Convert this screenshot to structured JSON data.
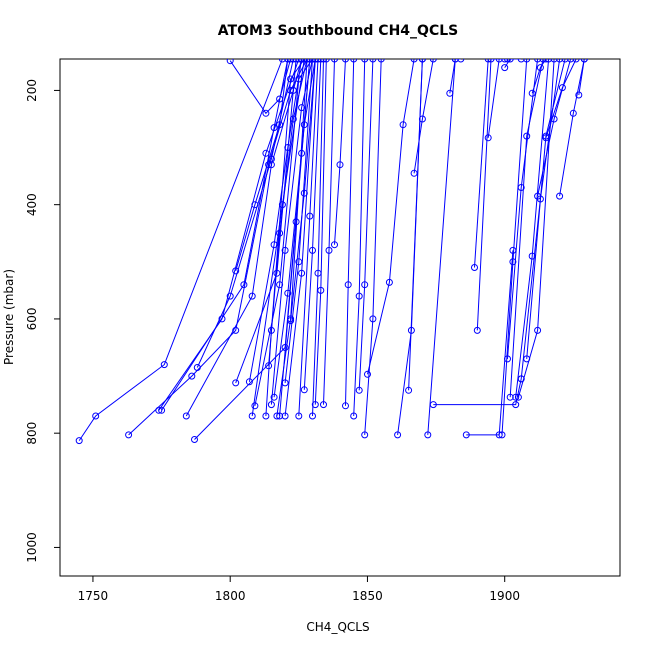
{
  "chart_data": {
    "type": "line",
    "title": "ATOM3 Southbound CH4_QCLS",
    "xlabel": "CH4_QCLS",
    "ylabel": "Pressure (mbar)",
    "xlim": [
      1738,
      1942
    ],
    "ylim": [
      1050,
      145
    ],
    "y_reversed": true,
    "x_ticks": [
      1750,
      1800,
      1850,
      1900
    ],
    "y_ticks": [
      200,
      400,
      600,
      800,
      1000
    ],
    "grid": false,
    "legend": "none",
    "color": "#0000ff",
    "markers": "open-circle",
    "series": [
      {
        "x": [
          1745,
          1751,
          1776,
          1819
        ],
        "y": [
          813,
          770,
          680,
          145
        ]
      },
      {
        "x": [
          1763,
          1786,
          1802,
          1814,
          1822,
          1828
        ],
        "y": [
          803,
          700,
          620,
          330,
          200,
          145
        ]
      },
      {
        "x": [
          1774,
          1797,
          1813,
          1825
        ],
        "y": [
          760,
          600,
          310,
          145
        ]
      },
      {
        "x": [
          1775,
          1805,
          1816,
          1821
        ],
        "y": [
          760,
          540,
          265,
          145
        ]
      },
      {
        "x": [
          1784,
          1808,
          1815,
          1823,
          1826
        ],
        "y": [
          770,
          560,
          330,
          200,
          145
        ]
      },
      {
        "x": [
          1787,
          1820,
          1826,
          1829
        ],
        "y": [
          811,
          650,
          310,
          145
        ]
      },
      {
        "x": [
          1788,
          1800,
          1815,
          1823
        ],
        "y": [
          685,
          560,
          320,
          145
        ]
      },
      {
        "x": [
          1800,
          1813,
          1818,
          1822
        ],
        "y": [
          148,
          240,
          215,
          145
        ]
      },
      {
        "x": [
          1802,
          1809,
          1818,
          1821
        ],
        "y": [
          516,
          400,
          260,
          145
        ]
      },
      {
        "x": [
          1802,
          1817,
          1824
        ],
        "y": [
          712,
          520,
          145
        ]
      },
      {
        "x": [
          1807,
          1816,
          1821,
          1826
        ],
        "y": [
          710,
          470,
          300,
          145
        ]
      },
      {
        "x": [
          1808,
          1819,
          1827
        ],
        "y": [
          770,
          400,
          145
        ]
      },
      {
        "x": [
          1809,
          1818,
          1825,
          1830
        ],
        "y": [
          752,
          540,
          180,
          145
        ]
      },
      {
        "x": [
          1813,
          1815,
          1822,
          1827
        ],
        "y": [
          770,
          620,
          180,
          145
        ]
      },
      {
        "x": [
          1814,
          1818,
          1823,
          1828
        ],
        "y": [
          682,
          450,
          250,
          145
        ]
      },
      {
        "x": [
          1815,
          1820,
          1826,
          1830
        ],
        "y": [
          750,
          480,
          230,
          145
        ]
      },
      {
        "x": [
          1816,
          1821,
          1827,
          1831
        ],
        "y": [
          737,
          555,
          260,
          145
        ]
      },
      {
        "x": [
          1817,
          1822,
          1828
        ],
        "y": [
          770,
          600,
          145
        ]
      },
      {
        "x": [
          1818,
          1824,
          1829
        ],
        "y": [
          770,
          430,
          145
        ]
      },
      {
        "x": [
          1820,
          1825,
          1830
        ],
        "y": [
          712,
          500,
          145
        ]
      },
      {
        "x": [
          1820,
          1826,
          1831
        ],
        "y": [
          770,
          520,
          145
        ]
      },
      {
        "x": [
          1822,
          1827,
          1831
        ],
        "y": [
          603,
          380,
          145
        ]
      },
      {
        "x": [
          1825,
          1829,
          1832
        ],
        "y": [
          770,
          420,
          145
        ]
      },
      {
        "x": [
          1827,
          1830,
          1833
        ],
        "y": [
          724,
          480,
          145
        ]
      },
      {
        "x": [
          1830,
          1832,
          1834
        ],
        "y": [
          770,
          520,
          145
        ]
      },
      {
        "x": [
          1831,
          1833,
          1835
        ],
        "y": [
          750,
          550,
          145
        ]
      },
      {
        "x": [
          1834,
          1836,
          1838
        ],
        "y": [
          750,
          480,
          145
        ]
      },
      {
        "x": [
          1838,
          1840,
          1842
        ],
        "y": [
          470,
          330,
          145
        ]
      },
      {
        "x": [
          1842,
          1843,
          1845
        ],
        "y": [
          752,
          540,
          145
        ]
      },
      {
        "x": [
          1845,
          1847,
          1849
        ],
        "y": [
          770,
          560,
          145
        ]
      },
      {
        "x": [
          1847,
          1849,
          1852
        ],
        "y": [
          725,
          540,
          145
        ]
      },
      {
        "x": [
          1849,
          1852,
          1855
        ],
        "y": [
          803,
          600,
          145
        ]
      },
      {
        "x": [
          1850,
          1858,
          1863,
          1867
        ],
        "y": [
          697,
          536,
          260,
          145
        ]
      },
      {
        "x": [
          1861,
          1866,
          1870
        ],
        "y": [
          803,
          620,
          145
        ]
      },
      {
        "x": [
          1865,
          1870
        ],
        "y": [
          725,
          145
        ]
      },
      {
        "x": [
          1867,
          1870,
          1874
        ],
        "y": [
          345,
          250,
          145
        ]
      },
      {
        "x": [
          1872,
          1882,
          1884
        ],
        "y": [
          803,
          145,
          145
        ]
      },
      {
        "x": [
          1874,
          1904,
          1906
        ],
        "y": [
          750,
          750,
          705
        ]
      },
      {
        "x": [
          1880,
          1882
        ],
        "y": [
          205,
          145
        ]
      },
      {
        "x": [
          1886,
          1898,
          1903
        ],
        "y": [
          803,
          803,
          480
        ]
      },
      {
        "x": [
          1889,
          1894
        ],
        "y": [
          510,
          145
        ]
      },
      {
        "x": [
          1890,
          1895,
          1900
        ],
        "y": [
          620,
          145,
          145
        ]
      },
      {
        "x": [
          1894,
          1898,
          1901
        ],
        "y": [
          283,
          145,
          145
        ]
      },
      {
        "x": [
          1899,
          1903,
          1908
        ],
        "y": [
          803,
          500,
          145
        ]
      },
      {
        "x": [
          1900,
          1902,
          1906
        ],
        "y": [
          160,
          145,
          145
        ]
      },
      {
        "x": [
          1901,
          1906,
          1912
        ],
        "y": [
          670,
          370,
          145
        ]
      },
      {
        "x": [
          1902,
          1908,
          1914
        ],
        "y": [
          737,
          280,
          145
        ]
      },
      {
        "x": [
          1904,
          1910,
          1916
        ],
        "y": [
          737,
          490,
          145
        ]
      },
      {
        "x": [
          1905,
          1912,
          1918
        ],
        "y": [
          737,
          620,
          145
        ]
      },
      {
        "x": [
          1906,
          1913,
          1920
        ],
        "y": [
          705,
          390,
          145
        ]
      },
      {
        "x": [
          1908,
          1915,
          1922
        ],
        "y": [
          670,
          280,
          145
        ]
      },
      {
        "x": [
          1910,
          1913,
          1915
        ],
        "y": [
          205,
          160,
          145
        ]
      },
      {
        "x": [
          1912,
          1918,
          1924
        ],
        "y": [
          385,
          250,
          145
        ]
      },
      {
        "x": [
          1915,
          1921,
          1926
        ],
        "y": [
          283,
          195,
          145
        ]
      },
      {
        "x": [
          1920,
          1925,
          1929
        ],
        "y": [
          385,
          240,
          145
        ]
      },
      {
        "x": [
          1927,
          1929
        ],
        "y": [
          208,
          145
        ]
      }
    ]
  }
}
